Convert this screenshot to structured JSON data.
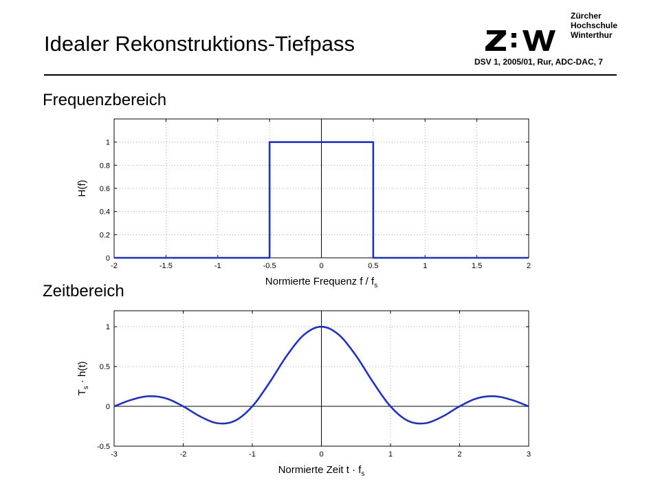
{
  "header": {
    "title": "Idealer Rekonstruktions-Tiefpass",
    "meta": "DSV 1, 2005/01, Rur, ADC-DAC,  7",
    "logo_text": "Z:W",
    "institution": [
      "Zürcher",
      "Hochschule",
      "Winterthur"
    ]
  },
  "sections": {
    "frequency": "Frequenzbereich",
    "time": "Zeitbereich"
  },
  "chart_data": [
    {
      "type": "line",
      "xlabel": "Normierte Frequenz f / f",
      "xlabel_sub": "s",
      "ylabel": "H(f)",
      "xlim": [
        -2,
        2
      ],
      "ylim": [
        0,
        1.2
      ],
      "xticks": [
        -2,
        -1.5,
        -1,
        -0.5,
        0,
        0.5,
        1,
        1.5,
        2
      ],
      "yticks": [
        0,
        0.2,
        0.4,
        0.6,
        0.8,
        1
      ],
      "grid": true,
      "series": [
        {
          "x": [
            -2,
            -0.5,
            -0.5,
            0.5,
            0.5,
            2
          ],
          "y": [
            0,
            0,
            1,
            1,
            0,
            0
          ]
        }
      ],
      "color": "#1a2fd6"
    },
    {
      "type": "line",
      "xlabel": "Normierte Zeit t · f",
      "xlabel_sub": "s",
      "ylabel": "T · h(t)",
      "ylabel_prefix": "T",
      "ylabel_sub": "s",
      "ylabel_rest": " · h(t)",
      "xlim": [
        -3,
        3
      ],
      "ylim": [
        -0.5,
        1.2
      ],
      "xticks": [
        -3,
        -2,
        -1,
        0,
        1,
        2,
        3
      ],
      "yticks": [
        -0.5,
        0,
        0.5,
        1
      ],
      "grid": true,
      "series": [
        {
          "x": [
            -3,
            -2.75,
            -2.5,
            -2.25,
            -2,
            -1.75,
            -1.5,
            -1.25,
            -1,
            -0.75,
            -0.5,
            -0.25,
            0,
            0.25,
            0.5,
            0.75,
            1,
            1.25,
            1.5,
            1.75,
            2,
            2.25,
            2.5,
            2.75,
            3
          ],
          "y": [
            0,
            0.082,
            0.127,
            0.1,
            0,
            -0.129,
            -0.212,
            -0.18,
            0,
            0.3,
            0.637,
            0.9,
            1,
            0.9,
            0.637,
            0.3,
            0,
            -0.18,
            -0.212,
            -0.129,
            0,
            0.1,
            0.127,
            0.082,
            0
          ]
        }
      ],
      "color": "#1a2fd6"
    }
  ]
}
